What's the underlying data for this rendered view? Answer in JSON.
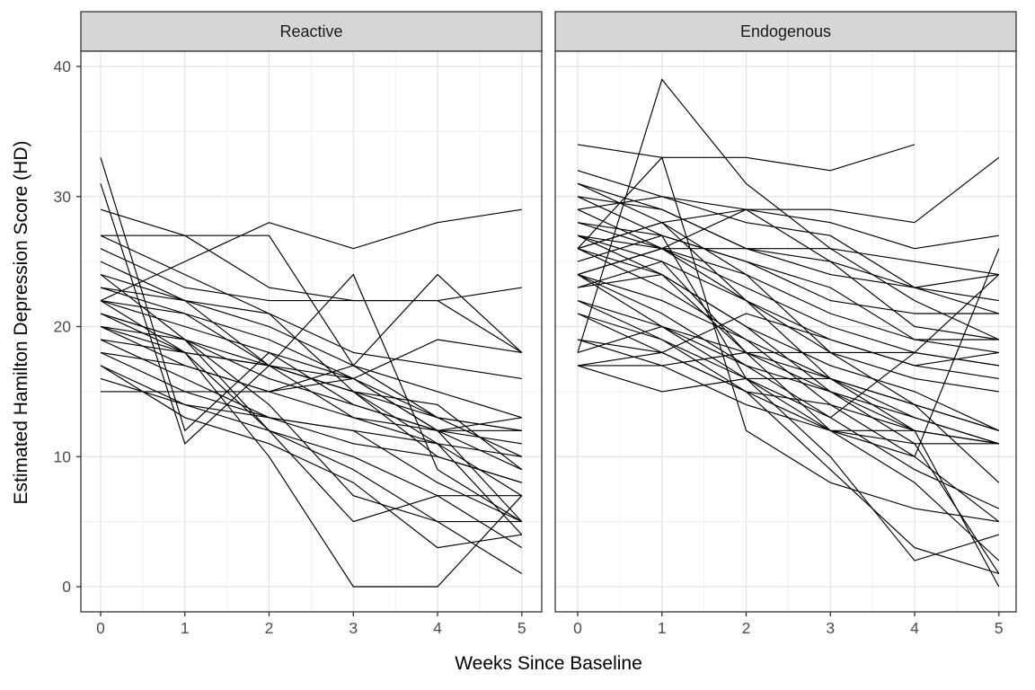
{
  "figure": {
    "y_axis_title": "Estimated Hamilton Depression Score (HD)",
    "x_axis_title": "Weeks Since Baseline",
    "facet_left_label": "Reactive",
    "facet_right_label": "Endogenous"
  },
  "chart_data": {
    "type": "line",
    "title": "",
    "xlabel": "Weeks Since Baseline",
    "ylabel": "Estimated Hamilton Depression Score (HD)",
    "x": [
      0,
      1,
      2,
      3,
      4,
      5
    ],
    "x_ticks": [
      0,
      1,
      2,
      3,
      4,
      5
    ],
    "y_ticks": [
      0,
      10,
      20,
      30,
      40
    ],
    "xlim": [
      0,
      5
    ],
    "ylim": [
      0,
      40
    ],
    "grid": "major+minor",
    "legend": "none",
    "style": {
      "line_color": "#000000",
      "line_width": 1.15,
      "strip_fill": "#d6d6d6",
      "panel_fill": "#ffffff",
      "border_color": "#333333",
      "grid_major_color": "#e3e3e3",
      "grid_minor_color": "#efefef",
      "tick_label_color": "#4d4d4d",
      "tick_mark_color": "#333333"
    },
    "facets": [
      {
        "label": "Reactive",
        "series": [
          {
            "values": [
              33,
              12,
              18,
              14,
              12,
              9
            ]
          },
          {
            "values": [
              31,
              11,
              17,
              15,
              10,
              8
            ]
          },
          {
            "values": [
              27,
              27,
              27,
              17,
              13,
              12
            ]
          },
          {
            "values": [
              22,
              25,
              28,
              26,
              28,
              29
            ]
          },
          {
            "values": [
              29,
              27,
              23,
              22,
              22,
              23
            ]
          },
          {
            "values": [
              26,
              23,
              22,
              22,
              22,
              18
            ]
          },
          {
            "values": [
              15,
              15,
              15,
              16,
              19,
              18
            ]
          },
          {
            "values": [
              20,
              18,
              10,
              0,
              0,
              7
            ]
          },
          {
            "values": [
              24,
              19,
              14,
              7,
              5,
              1
            ]
          },
          {
            "values": [
              21,
              18,
              12,
              5,
              7,
              7
            ]
          },
          {
            "values": [
              22,
              21,
              17,
              16,
              12,
              12
            ]
          },
          {
            "values": [
              23,
              21,
              19,
              16,
              12,
              13
            ]
          },
          {
            "values": [
              22,
              20,
              18,
              16,
              13,
              12
            ]
          },
          {
            "values": [
              20,
              17,
              15,
              13,
              12,
              11
            ]
          },
          {
            "values": [
              19,
              16,
              13,
              12,
              11,
              10
            ]
          },
          {
            "values": [
              21,
              19,
              16,
              14,
              12,
              5
            ]
          },
          {
            "values": [
              25,
              22,
              17,
              15,
              11,
              4
            ]
          },
          {
            "values": [
              18,
              15,
              13,
              12,
              8,
              5
            ]
          },
          {
            "values": [
              17,
              14,
              12,
              10,
              7,
              3
            ]
          },
          {
            "values": [
              21,
              19,
              17,
              24,
              9,
              5
            ]
          },
          {
            "values": [
              18,
              17,
              15,
              17,
              24,
              18
            ]
          },
          {
            "values": [
              27,
              24,
              21,
              18,
              17,
              16
            ]
          },
          {
            "values": [
              24,
              22,
              20,
              17,
              15,
              13
            ]
          },
          {
            "values": [
              23,
              22,
              21,
              15,
              13,
              10
            ]
          },
          {
            "values": [
              19,
              18,
              17,
              15,
              14,
              9
            ]
          },
          {
            "values": [
              20,
              19,
              12,
              9,
              5,
              5
            ]
          },
          {
            "values": [
              17,
              13,
              11,
              8,
              3,
              4
            ]
          },
          {
            "values": [
              22,
              18,
              17,
              13,
              11,
              7
            ]
          },
          {
            "values": [
              16,
              14,
              13,
              11,
              10,
              8
            ]
          }
        ]
      },
      {
        "label": "Endogenous",
        "series": [
          {
            "values": [
              18,
              39,
              31,
              26,
              22,
              19
            ]
          },
          {
            "values": [
              26,
              33,
              12,
              8,
              6,
              5
            ]
          },
          {
            "values": [
              34,
              33,
              33,
              32,
              34,
              null
            ]
          },
          {
            "values": [
              32,
              30,
              29,
              29,
              28,
              33
            ]
          },
          {
            "values": [
              31,
              29,
              26,
              26,
              25,
              24
            ]
          },
          {
            "values": [
              29,
              30,
              28,
              27,
              23,
              24
            ]
          },
          {
            "values": [
              26,
              28,
              29,
              25,
              23,
              22
            ]
          },
          {
            "values": [
              30,
              29,
              26,
              24,
              23,
              21
            ]
          },
          {
            "values": [
              24,
              26,
              26,
              25,
              20,
              19
            ]
          },
          {
            "values": [
              28,
              27,
              25,
              23,
              19,
              19
            ]
          },
          {
            "values": [
              27,
              26,
              24,
              18,
              18,
              17
            ]
          },
          {
            "values": [
              25,
              27,
              16,
              16,
              14,
              12
            ]
          },
          {
            "values": [
              23,
              25,
              18,
              18,
              16,
              15
            ]
          },
          {
            "values": [
              17,
              17,
              18,
              15,
              12,
              11
            ]
          },
          {
            "values": [
              17,
              15,
              16,
              12,
              11,
              11
            ]
          },
          {
            "values": [
              21,
              18,
              15,
              14,
              12,
              11
            ]
          },
          {
            "values": [
              22,
              20,
              17,
              15,
              13,
              11
            ]
          },
          {
            "values": [
              24,
              22,
              19,
              16,
              14,
              12
            ]
          },
          {
            "values": [
              26,
              24,
              20,
              17,
              15,
              12
            ]
          },
          {
            "values": [
              27,
              25,
              22,
              19,
              17,
              16
            ]
          },
          {
            "values": [
              29,
              26,
              23,
              20,
              18,
              17
            ]
          },
          {
            "values": [
              31,
              28,
              24,
              21,
              19,
              18
            ]
          },
          {
            "values": [
              21,
              19,
              16,
              13,
              18,
              24
            ]
          },
          {
            "values": [
              19,
              18,
              15,
              12,
              10,
              26
            ]
          },
          {
            "values": [
              28,
              26,
              22,
              18,
              14,
              8
            ]
          },
          {
            "values": [
              24,
              21,
              17,
              13,
              9,
              6
            ]
          },
          {
            "values": [
              26,
              23,
              19,
              14,
              10,
              5
            ]
          },
          {
            "values": [
              22,
              19,
              15,
              9,
              3,
              1
            ]
          },
          {
            "values": [
              24,
              20,
              16,
              10,
              2,
              4
            ]
          },
          {
            "values": [
              27,
              24,
              18,
              12,
              8,
              2
            ]
          },
          {
            "values": [
              26,
              28,
              22,
              16,
              12,
              0
            ]
          },
          {
            "values": [
              23,
              24,
              20,
              15,
              11,
              1
            ]
          },
          {
            "values": [
              30,
              27,
              25,
              22,
              21,
              21
            ]
          },
          {
            "values": [
              18,
              20,
              18,
              16,
              13,
              11
            ]
          },
          {
            "values": [
              19,
              17,
              14,
              12,
              12,
              11
            ]
          },
          {
            "values": [
              24,
              26,
              29,
              28,
              26,
              27
            ]
          },
          {
            "values": [
              17,
              18,
              21,
              19,
              17,
              18
            ]
          }
        ]
      }
    ]
  }
}
